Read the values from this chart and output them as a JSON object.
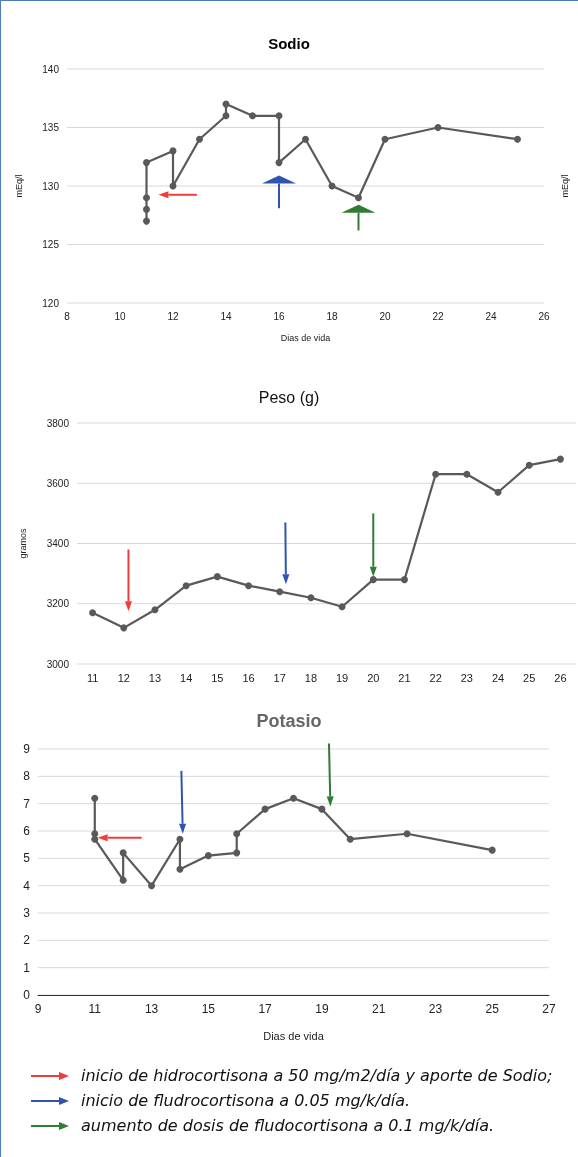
{
  "chart_data": [
    {
      "type": "line",
      "title": "Sodio",
      "xlabel": "Dias de vida",
      "ylabel": "mEq/l",
      "y2label": "mEq/l",
      "x": [
        11,
        11,
        11,
        11,
        12,
        12,
        13,
        14,
        14,
        15,
        16,
        16,
        17,
        18,
        19,
        20,
        22,
        25
      ],
      "values": [
        127,
        128,
        129,
        132,
        133,
        130,
        134,
        136,
        137,
        136,
        136,
        132,
        134,
        130,
        129,
        134,
        135,
        134
      ],
      "color": "#595959",
      "xlim": [
        8,
        26
      ],
      "xticks": [
        8,
        10,
        12,
        14,
        16,
        18,
        20,
        22,
        24,
        26
      ],
      "ylim": [
        120,
        140
      ],
      "yticks": [
        120,
        125,
        130,
        135,
        140
      ],
      "grid": "y",
      "marker": "circle",
      "line_style": "solid"
    },
    {
      "type": "line",
      "title": "Peso (g)",
      "ylabel": "gramos",
      "categories": [
        "11",
        "12",
        "13",
        "14",
        "15",
        "16",
        "17",
        "18",
        "19",
        "20",
        "21",
        "22",
        "23",
        "24",
        "25",
        "26"
      ],
      "values": [
        3170,
        3120,
        3180,
        3260,
        3290,
        3260,
        3240,
        3220,
        3190,
        3280,
        3280,
        3630,
        3630,
        3570,
        3660,
        3680
      ],
      "color": "#595959",
      "ylim": [
        3000,
        3800
      ],
      "yticks": [
        3000,
        3200,
        3400,
        3600,
        3800
      ],
      "grid": "y",
      "marker": "circle",
      "line_style": "solid"
    },
    {
      "type": "line",
      "title": "Potasio",
      "xlabel": "Dias de vida",
      "x": [
        11,
        11,
        11,
        12,
        12,
        13,
        14,
        14,
        15,
        16,
        16,
        17,
        18,
        19,
        20,
        22,
        25
      ],
      "values": [
        7.2,
        5.9,
        5.7,
        4.2,
        5.2,
        4.0,
        5.7,
        4.6,
        5.1,
        5.2,
        5.9,
        6.8,
        7.2,
        6.8,
        5.7,
        5.9,
        5.3
      ],
      "color": "#595959",
      "xlim": [
        9,
        27
      ],
      "xticks": [
        9,
        11,
        13,
        15,
        17,
        19,
        21,
        23,
        25,
        27
      ],
      "ylim": [
        0,
        9
      ],
      "yticks": [
        0,
        1,
        2,
        3,
        4,
        5,
        6,
        7,
        8,
        9
      ],
      "grid": "y",
      "marker": "circle",
      "line_style": "solid",
      "annotations": [
        "inicio de hidrocortisona a 50 mg/m2/día y aporte de Sodio;",
        "inicio de fludrocortisona a 0.05 mg/k/día.",
        "aumento de dosis de fludocortisona a 0.1 mg/k/día."
      ]
    }
  ]
}
